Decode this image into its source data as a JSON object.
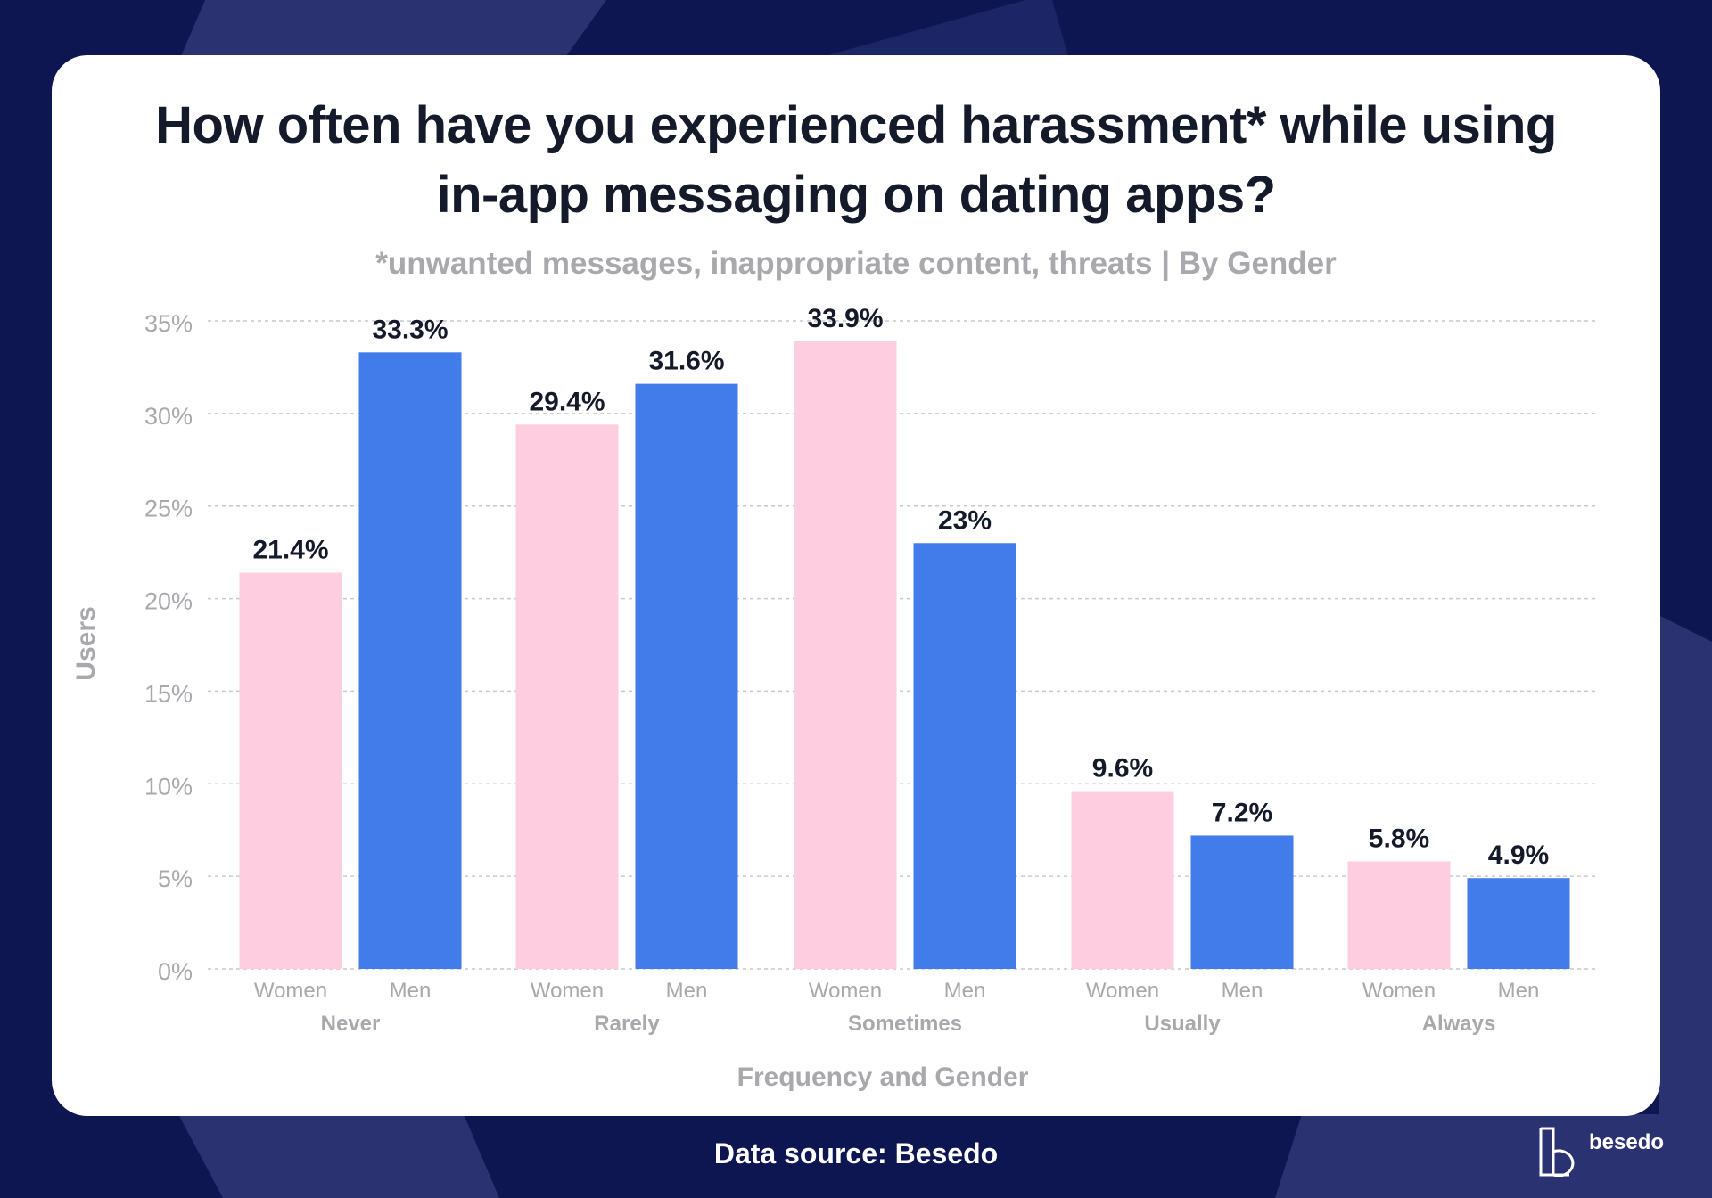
{
  "colors": {
    "background": "#0d1650",
    "card": "#ffffff",
    "women": "#fecddf",
    "men": "#427bea",
    "axis_text": "#a8a8ad",
    "label_text": "#151a2b"
  },
  "source": "Data source: Besedo",
  "logo": {
    "text": "besedo",
    "icon": "besedo-logo-icon"
  },
  "chart_data": {
    "type": "bar",
    "title_lines": [
      "How often have you experienced harassment* while using",
      "in-app messaging on dating apps?"
    ],
    "subtitle": "*unwanted messages, inappropriate content, threats | By Gender",
    "xlabel": "Frequency and Gender",
    "ylabel": "Users",
    "ylim": [
      0,
      35
    ],
    "yticks": [
      0,
      5,
      10,
      15,
      20,
      25,
      30,
      35
    ],
    "ytick_labels": [
      "0%",
      "5%",
      "10%",
      "15%",
      "20%",
      "25%",
      "30%",
      "35%"
    ],
    "grid": true,
    "categories": [
      "Never",
      "Rarely",
      "Sometimes",
      "Usually",
      "Always"
    ],
    "series": [
      {
        "name": "Women",
        "values": [
          21.4,
          29.4,
          33.9,
          9.6,
          5.8
        ],
        "labels": [
          "21.4%",
          "29.4%",
          "33.9%",
          "9.6%",
          "5.8%"
        ]
      },
      {
        "name": "Men",
        "values": [
          33.3,
          31.6,
          23,
          7.2,
          4.9
        ],
        "labels": [
          "33.3%",
          "31.6%",
          "23%",
          "7.2%",
          "4.9%"
        ]
      }
    ]
  }
}
